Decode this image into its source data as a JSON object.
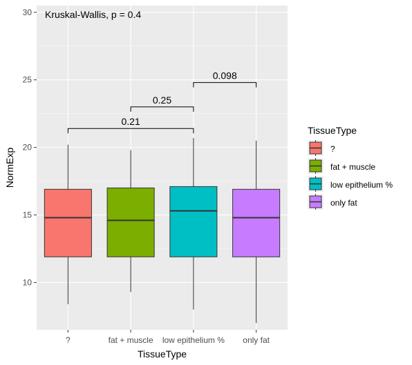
{
  "chart_data": {
    "type": "box",
    "title": "",
    "xlabel": "TissueType",
    "ylabel": "NormExp",
    "ylim": [
      6.5,
      30.5
    ],
    "yticks": [
      10,
      15,
      20,
      25,
      30
    ],
    "grid": true,
    "annotation": "Kruskal-Wallis, p = 0.4",
    "categories": [
      "?",
      "fat + muscle",
      "low epithelium %",
      "only fat"
    ],
    "boxes": [
      {
        "category": "?",
        "min": 8.4,
        "q1": 11.9,
        "median": 14.8,
        "q3": 16.9,
        "max": 20.2,
        "color": "#F8766D"
      },
      {
        "category": "fat + muscle",
        "min": 9.3,
        "q1": 11.9,
        "median": 14.6,
        "q3": 17.0,
        "max": 19.8,
        "color": "#7CAE00"
      },
      {
        "category": "low epithelium %",
        "min": 8.0,
        "q1": 11.9,
        "median": 15.3,
        "q3": 17.1,
        "max": 20.7,
        "color": "#00BFC4"
      },
      {
        "category": "only fat",
        "min": 7.0,
        "q1": 11.9,
        "median": 14.8,
        "q3": 16.9,
        "max": 20.5,
        "color": "#C77CFF"
      }
    ],
    "comparisons": [
      {
        "from": "?",
        "to": "low epithelium %",
        "label": "0.21",
        "y": 21.4
      },
      {
        "from": "fat + muscle",
        "to": "low epithelium %",
        "label": "0.25",
        "y": 23.0
      },
      {
        "from": "low epithelium %",
        "to": "only fat",
        "label": "0.098",
        "y": 24.8
      }
    ],
    "legend": {
      "title": "TissueType",
      "position": "right",
      "entries": [
        "?",
        "fat + muscle",
        "low epithelium %",
        "only fat"
      ]
    }
  }
}
